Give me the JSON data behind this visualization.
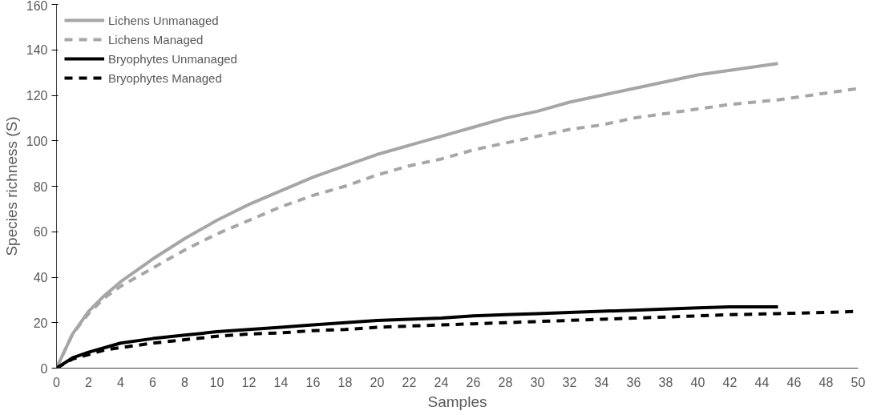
{
  "chart_data": {
    "type": "line",
    "xlabel": "Samples",
    "ylabel": "Species richness (S)",
    "xlim": [
      0,
      50
    ],
    "xticks": [
      0,
      2,
      4,
      6,
      8,
      10,
      12,
      14,
      16,
      18,
      20,
      22,
      24,
      26,
      28,
      30,
      32,
      34,
      36,
      38,
      40,
      42,
      44,
      46,
      48,
      50
    ],
    "ylim": [
      0,
      160
    ],
    "yticks": [
      0,
      20,
      40,
      60,
      80,
      100,
      120,
      140,
      160
    ],
    "grid": false,
    "legend": "top left",
    "marker": "none",
    "series": [
      {
        "name": "Lichens Unmanaged",
        "color": "#a6a6a6",
        "line_style": "solid",
        "x": [
          0,
          1,
          2,
          3,
          4,
          6,
          8,
          10,
          12,
          14,
          16,
          18,
          20,
          22,
          24,
          26,
          28,
          30,
          32,
          34,
          36,
          38,
          40,
          42,
          45
        ],
        "values": [
          0,
          15,
          25,
          32,
          38,
          48,
          57,
          65,
          72,
          78,
          84,
          89,
          94,
          98,
          102,
          106,
          110,
          113,
          117,
          120,
          123,
          126,
          129,
          131,
          134
        ]
      },
      {
        "name": "Lichens Managed",
        "color": "#a6a6a6",
        "line_style": "dashed",
        "x": [
          0,
          1,
          2,
          3,
          4,
          6,
          8,
          10,
          12,
          14,
          16,
          18,
          20,
          22,
          24,
          26,
          28,
          30,
          32,
          34,
          36,
          38,
          40,
          42,
          45,
          48,
          50
        ],
        "values": [
          0,
          15,
          24,
          31,
          36,
          44,
          52,
          59,
          65,
          71,
          76,
          80,
          85,
          89,
          92,
          96,
          99,
          102,
          105,
          107,
          110,
          112,
          114,
          116,
          118,
          121,
          123
        ]
      },
      {
        "name": "Bryophytes Unmanaged",
        "color": "#000000",
        "line_style": "solid",
        "x": [
          0,
          1,
          2,
          3,
          4,
          6,
          8,
          10,
          12,
          14,
          16,
          18,
          20,
          22,
          24,
          26,
          28,
          30,
          32,
          34,
          36,
          38,
          40,
          42,
          45
        ],
        "values": [
          0,
          4.5,
          7,
          9,
          11,
          13,
          14.5,
          16,
          17,
          18,
          19,
          20,
          21,
          21.5,
          22,
          23,
          23.5,
          24,
          24.5,
          25,
          25.5,
          26,
          26.5,
          27,
          27
        ]
      },
      {
        "name": "Bryophytes Managed",
        "color": "#000000",
        "line_style": "dashed",
        "x": [
          0,
          1,
          2,
          3,
          4,
          6,
          8,
          10,
          12,
          14,
          16,
          18,
          20,
          22,
          24,
          26,
          28,
          30,
          32,
          34,
          36,
          38,
          40,
          42,
          45,
          48,
          50
        ],
        "values": [
          0,
          4,
          6,
          8,
          9,
          11,
          12.5,
          14,
          15,
          15.5,
          16.5,
          17,
          18,
          18.5,
          19,
          19.5,
          20,
          20.5,
          21,
          21.5,
          22,
          22.5,
          23,
          23.5,
          24,
          24.5,
          25
        ]
      }
    ]
  }
}
